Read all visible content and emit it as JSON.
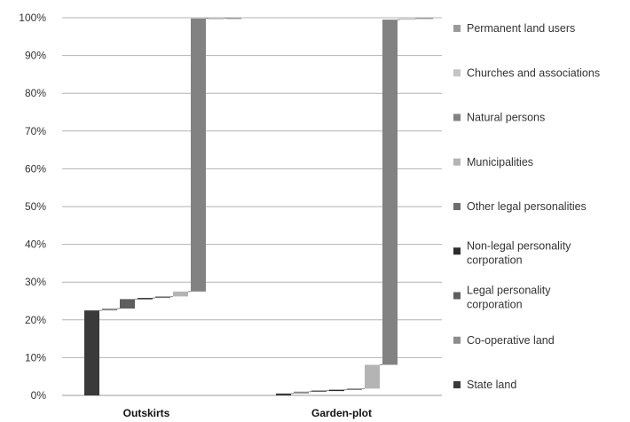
{
  "chart_data": {
    "type": "bar",
    "stacking": "waterfall-100-percent",
    "title": "",
    "xlabel": "",
    "ylabel": "",
    "ylim": [
      0,
      100
    ],
    "y_ticks": [
      "0%",
      "10%",
      "20%",
      "30%",
      "40%",
      "50%",
      "60%",
      "70%",
      "80%",
      "90%",
      "100%"
    ],
    "categories": [
      "Outskirts",
      "Garden-plot"
    ],
    "grid": true,
    "legend_position": "right",
    "series": [
      {
        "name": "State land",
        "color": "#3a3a3a",
        "values": [
          22.5,
          0.5
        ]
      },
      {
        "name": "Co-operative land",
        "color": "#8c8c8c",
        "values": [
          0.5,
          0.5
        ]
      },
      {
        "name": "Legal personality corporation",
        "color": "#5f5f5f",
        "values": [
          2.5,
          0.3
        ]
      },
      {
        "name": "Non-legal personality corporation",
        "color": "#2c2c2c",
        "values": [
          0.3,
          0.2
        ]
      },
      {
        "name": "Other legal personalities",
        "color": "#6e6e6e",
        "values": [
          0.4,
          0.3
        ]
      },
      {
        "name": "Municipalities",
        "color": "#b4b4b4",
        "values": [
          1.3,
          6.3
        ]
      },
      {
        "name": "Natural persons",
        "color": "#828282",
        "values": [
          72.3,
          91.4
        ]
      },
      {
        "name": "Churches and associations",
        "color": "#c4c4c4",
        "values": [
          0.1,
          0.3
        ]
      },
      {
        "name": "Permanent land users",
        "color": "#9a9a9a",
        "values": [
          0.1,
          0.2
        ]
      }
    ]
  }
}
